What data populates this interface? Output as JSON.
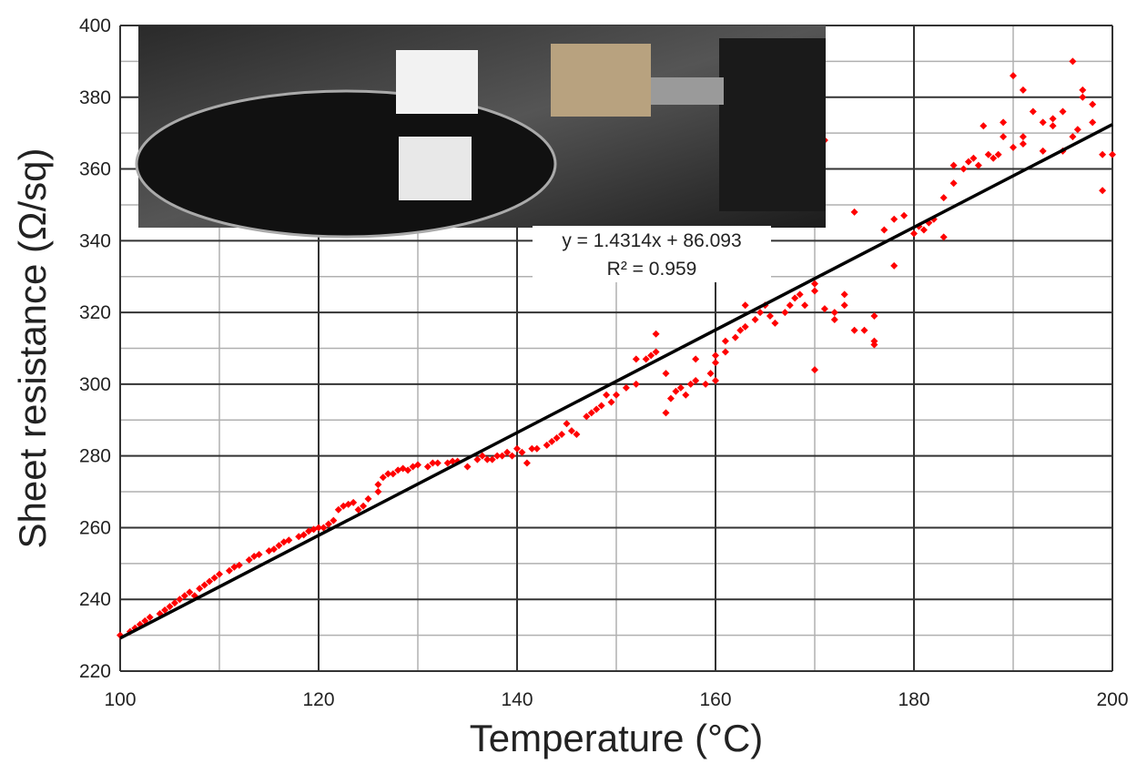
{
  "chart_data": {
    "type": "scatter",
    "xlabel": "Temperature (°C)",
    "ylabel": "Sheet resistance (Ω/sq)",
    "annotations": [
      "y = 1.4314x + 86.093",
      "R² = 0.959"
    ],
    "xlim": [
      100,
      200
    ],
    "xticks": [
      100,
      120,
      140,
      160,
      180,
      200
    ],
    "ylim": [
      220,
      400
    ],
    "yticks": [
      220,
      240,
      260,
      280,
      300,
      320,
      340,
      360,
      380,
      400
    ],
    "xminor": [
      110,
      130,
      150,
      170,
      190
    ],
    "yminor": [
      230,
      250,
      270,
      290,
      310,
      330,
      350,
      370,
      390
    ],
    "grid": true,
    "x": [
      100,
      101,
      101.5,
      102,
      102.5,
      103,
      104,
      104.5,
      105,
      105.5,
      106,
      106.5,
      107,
      107.5,
      108,
      108.5,
      109,
      109.5,
      110,
      111,
      111.5,
      112,
      113,
      113.5,
      114,
      115,
      115.5,
      116,
      116.5,
      117,
      118,
      118.5,
      119,
      119.5,
      120,
      120.5,
      121,
      121.5,
      122,
      122.5,
      123,
      123.5,
      124,
      124.5,
      125,
      126,
      126,
      126.5,
      127,
      127.5,
      128,
      128.5,
      129,
      129.5,
      130,
      131,
      131.5,
      132,
      133,
      133.5,
      134,
      135,
      136,
      136.5,
      137,
      137.5,
      138,
      138.5,
      139,
      139.5,
      140,
      140.5,
      141,
      141.5,
      142,
      143,
      143.5,
      144,
      144.5,
      145,
      145.5,
      146,
      147,
      147.5,
      148,
      148.5,
      149,
      149.5,
      150,
      151,
      152,
      152,
      153,
      153.5,
      154,
      154,
      155,
      155,
      155.5,
      156,
      156.5,
      157,
      157.5,
      158,
      158,
      159,
      159.5,
      160,
      160,
      160,
      161,
      161,
      162,
      162.5,
      163,
      163,
      164,
      164.5,
      165,
      165.5,
      166,
      167,
      167.5,
      168,
      168.5,
      169,
      170,
      170,
      170,
      171,
      171,
      172,
      172,
      173,
      173,
      174,
      174,
      175,
      176,
      176,
      176,
      177,
      178,
      178,
      179,
      180,
      180.5,
      181,
      181.5,
      182,
      183,
      183,
      184,
      184,
      185,
      185.5,
      186,
      186.5,
      187,
      187.5,
      188,
      188.5,
      189,
      189,
      190,
      190,
      191,
      191,
      191,
      192,
      193,
      193,
      194,
      194,
      195,
      195,
      196,
      196,
      196.5,
      197,
      197,
      198,
      198,
      199,
      199,
      200
    ],
    "series": [
      {
        "color": "#ff0000",
        "values": [
          230,
          231,
          232,
          233,
          234,
          235,
          236,
          237,
          238,
          239,
          240,
          241,
          242,
          241,
          243,
          244,
          245,
          246,
          247,
          248,
          249,
          249.5,
          251,
          252,
          252.5,
          253.5,
          254,
          255,
          256,
          256.5,
          257.5,
          258,
          259,
          259.5,
          260,
          260,
          261,
          262,
          265,
          266,
          266.5,
          267,
          265,
          266,
          268,
          270,
          272,
          274,
          275,
          275,
          276,
          276.5,
          276,
          277,
          277.5,
          277,
          278,
          278,
          278,
          278.5,
          278.5,
          277,
          279,
          280,
          279,
          279,
          280,
          280,
          281,
          280,
          282,
          281,
          278,
          282,
          282,
          283,
          284,
          285,
          286,
          289,
          287,
          286,
          291,
          292,
          293,
          294,
          297,
          295,
          297,
          299,
          300,
          307,
          307,
          308,
          309,
          314,
          303,
          292,
          296,
          298,
          299,
          297,
          300,
          301,
          307,
          300,
          303,
          301,
          306,
          308,
          309,
          312,
          313,
          315,
          316,
          322,
          318,
          320,
          322,
          319,
          317,
          320,
          322,
          324,
          325,
          322,
          326,
          328,
          304,
          321,
          368,
          320,
          318,
          322,
          325,
          315,
          348,
          315,
          311,
          319,
          312,
          343,
          333,
          346,
          347,
          342,
          344,
          343,
          345,
          346,
          341,
          352,
          356,
          361,
          360,
          362,
          363,
          361,
          372,
          364,
          363,
          364,
          373,
          369,
          366,
          386,
          382,
          369,
          367,
          376,
          373,
          365,
          372,
          374,
          376,
          365,
          390,
          369,
          371,
          382,
          380,
          378,
          373,
          354,
          364,
          364
        ]
      }
    ],
    "trendline": {
      "x": [
        100,
        200
      ],
      "values": [
        229.2,
        372.4
      ],
      "color": "#000000"
    }
  }
}
